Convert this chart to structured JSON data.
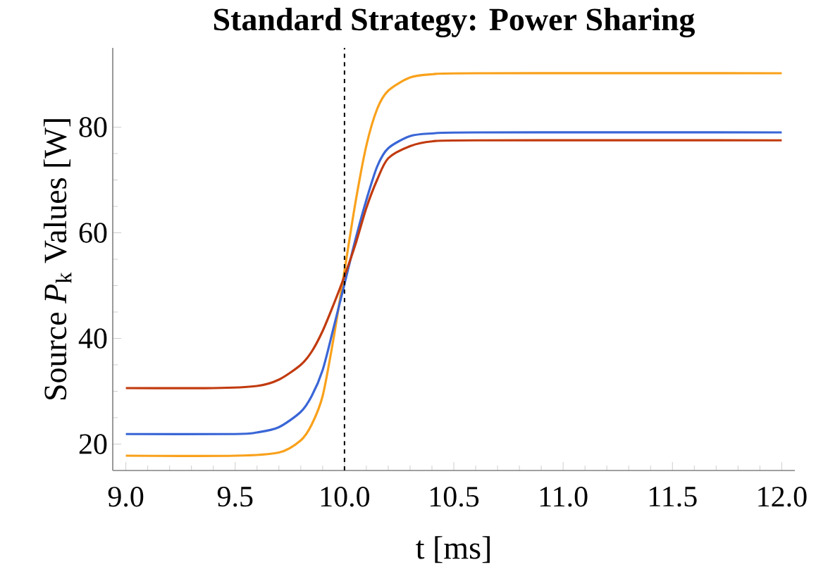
{
  "chart_data": {
    "type": "line",
    "title": "Standard Strategy: Power Sharing",
    "xlabel": "t [ms]",
    "ylabel": "Source *P*$_{k}$ Values [W]",
    "xlim": [
      8.94,
      12.06
    ],
    "ylim": [
      15,
      95
    ],
    "xticks": [
      {
        "value": 9,
        "label": "9.0"
      },
      {
        "value": 9.5,
        "label": "9.5"
      },
      {
        "value": 10,
        "label": "10.0"
      },
      {
        "value": 10.5,
        "label": "10.5"
      },
      {
        "value": 11,
        "label": "11.0"
      },
      {
        "value": 11.5,
        "label": "11.5"
      },
      {
        "value": 12,
        "label": "12.0"
      }
    ],
    "yticks": [
      20,
      40,
      60,
      80
    ],
    "grid": false,
    "marker": "none",
    "line_style": "solid",
    "ref_lines": [
      {
        "axis": "x",
        "value": 10,
        "color": "#000000",
        "line_style": "dashed"
      }
    ],
    "series": [
      {
        "color": "#f9a11b",
        "x": [
          9.0,
          9.5,
          9.7,
          9.8,
          9.85,
          9.9,
          9.95,
          10.0,
          10.05,
          10.1,
          10.15,
          10.2,
          10.3,
          10.4,
          10.6,
          12.0
        ],
        "values": [
          17.8,
          17.8,
          18.4,
          20.7,
          23.7,
          29.1,
          40,
          52.8,
          65.7,
          76.5,
          83.5,
          86.9,
          89.4,
          90,
          90.2,
          90.2
        ]
      },
      {
        "color": "#3a66d6",
        "x": [
          9.0,
          9.5,
          9.6,
          9.7,
          9.8,
          9.85,
          9.9,
          9.95,
          10.0,
          10.05,
          10.1,
          10.15,
          10.2,
          10.3,
          10.4,
          10.6,
          12.0
        ],
        "values": [
          21.9,
          21.9,
          22.2,
          23.2,
          26.1,
          29.1,
          34,
          42,
          50.3,
          58.7,
          66.2,
          72.6,
          76,
          78.3,
          78.8,
          79,
          79
        ]
      },
      {
        "color": "#c13a0e",
        "x": [
          9.0,
          9.4,
          9.6,
          9.7,
          9.8,
          9.85,
          9.9,
          9.95,
          10.0,
          10.05,
          10.1,
          10.15,
          10.2,
          10.3,
          10.4,
          10.6,
          12.0
        ],
        "values": [
          30.6,
          30.6,
          31,
          32.2,
          35,
          37.5,
          41.4,
          46.4,
          51.8,
          57.8,
          64.7,
          70.1,
          74.1,
          76.4,
          77.3,
          77.5,
          77.5
        ]
      }
    ]
  }
}
